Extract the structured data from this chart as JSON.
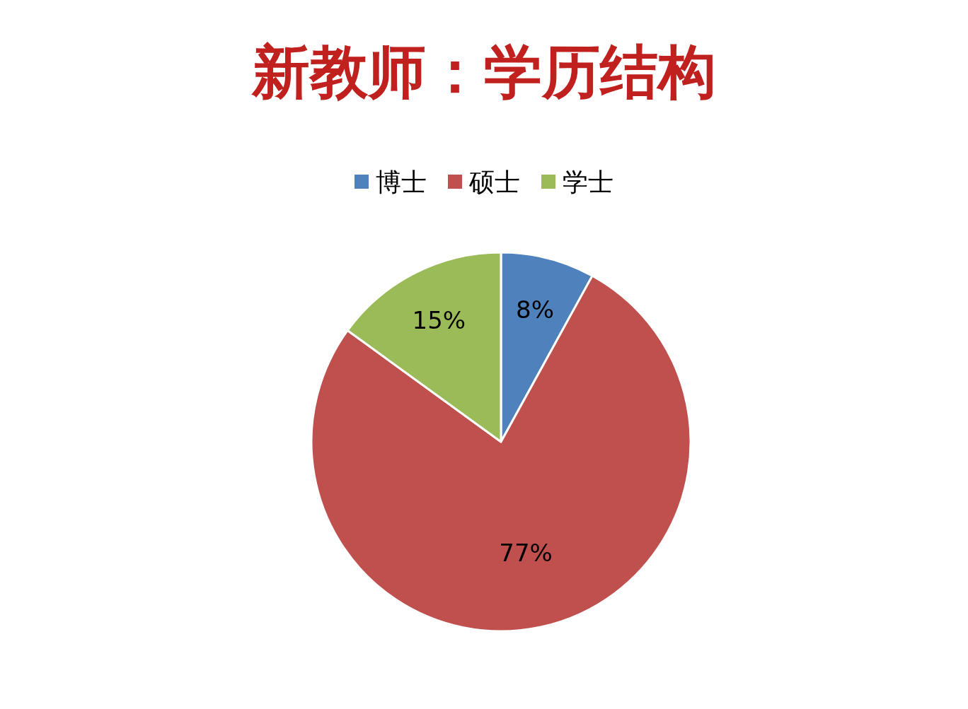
{
  "chart_data": {
    "type": "pie",
    "title": "新教师：学历结构",
    "categories": [
      "博士",
      "硕士",
      "学士"
    ],
    "values": [
      8,
      77,
      15
    ],
    "colors": [
      "#4f81bd",
      "#c0504d",
      "#9bbb59"
    ],
    "value_labels": [
      "8%",
      "77%",
      "15%"
    ],
    "legend": "top"
  }
}
